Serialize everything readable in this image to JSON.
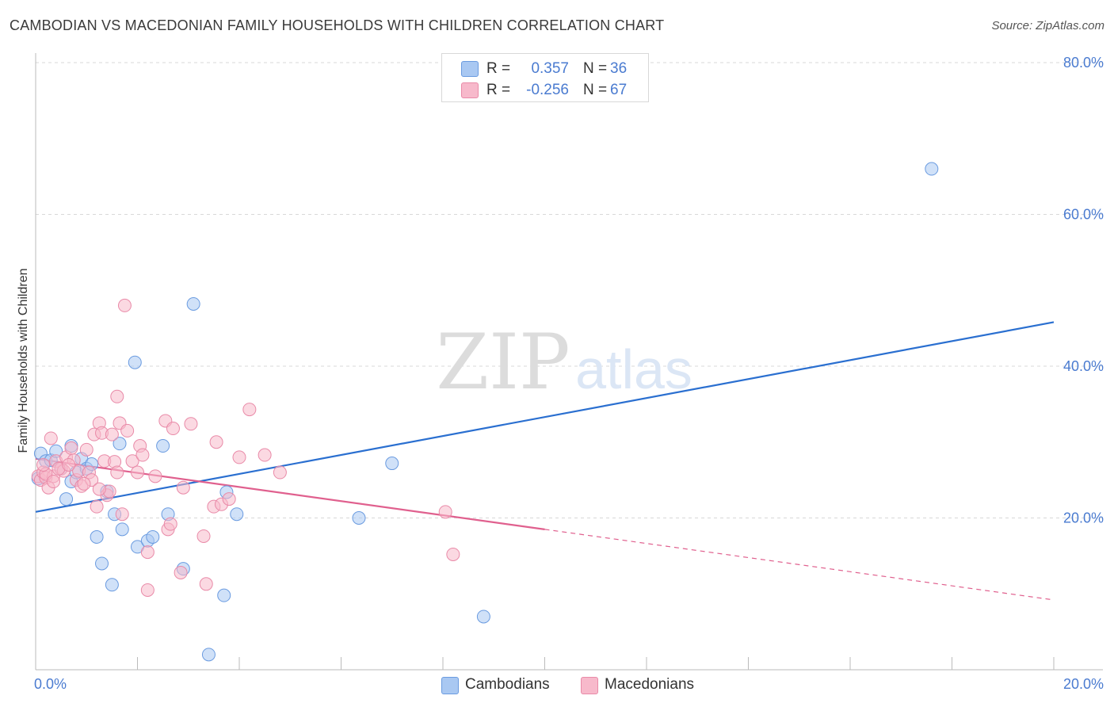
{
  "header": {
    "title": "CAMBODIAN VS MACEDONIAN FAMILY HOUSEHOLDS WITH CHILDREN CORRELATION CHART",
    "source": "Source: ZipAtlas.com"
  },
  "watermark": {
    "zip": "ZIP",
    "atlas": "atlas"
  },
  "legend": {
    "rows": [
      {
        "r_label": "R =",
        "r_value": "0.357",
        "n_label": "N =",
        "n_value": "36"
      },
      {
        "r_label": "R =",
        "r_value": "-0.256",
        "n_label": "N =",
        "n_value": "67"
      }
    ]
  },
  "bottom_legend": {
    "cambodians": "Cambodians",
    "macedonians": "Macedonians"
  },
  "colors": {
    "cambodian_fill": "#a9c8f2",
    "cambodian_stroke": "#6a9be0",
    "cambodian_line": "#2a6fd0",
    "macedonian_fill": "#f7b9cb",
    "macedonian_stroke": "#e98aa8",
    "macedonian_line": "#e0608e",
    "tick_blue": "#4a7bd0",
    "grid": "#d8d8d8"
  },
  "chart_data": {
    "type": "scatter",
    "title": "CAMBODIAN VS MACEDONIAN FAMILY HOUSEHOLDS WITH CHILDREN CORRELATION CHART",
    "xlabel": "",
    "ylabel": "Family Households with Children",
    "xlim": [
      0,
      20
    ],
    "ylim": [
      0,
      80
    ],
    "x_tick_labels": [
      "0.0%",
      "20.0%"
    ],
    "y_tick_values": [
      20,
      40,
      60,
      80
    ],
    "y_tick_labels": [
      "20.0%",
      "40.0%",
      "60.0%",
      "80.0%"
    ],
    "series": [
      {
        "name": "Cambodians",
        "points": [
          [
            0.05,
            25.2
          ],
          [
            0.1,
            28.5
          ],
          [
            0.2,
            27.5
          ],
          [
            0.3,
            27.6
          ],
          [
            0.4,
            28.8
          ],
          [
            0.5,
            26.5
          ],
          [
            0.6,
            22.5
          ],
          [
            0.7,
            29.5
          ],
          [
            0.7,
            24.8
          ],
          [
            0.8,
            26.0
          ],
          [
            0.9,
            27.8
          ],
          [
            1.0,
            26.5
          ],
          [
            1.1,
            27.1
          ],
          [
            1.2,
            17.5
          ],
          [
            1.3,
            14.0
          ],
          [
            1.4,
            23.5
          ],
          [
            1.5,
            11.2
          ],
          [
            1.55,
            20.5
          ],
          [
            1.65,
            29.8
          ],
          [
            1.7,
            18.5
          ],
          [
            1.95,
            40.5
          ],
          [
            2.0,
            16.2
          ],
          [
            2.2,
            17.0
          ],
          [
            2.3,
            17.5
          ],
          [
            2.5,
            29.5
          ],
          [
            2.6,
            20.5
          ],
          [
            2.9,
            13.3
          ],
          [
            3.1,
            48.2
          ],
          [
            3.4,
            2.0
          ],
          [
            3.7,
            9.8
          ],
          [
            3.75,
            23.4
          ],
          [
            3.95,
            20.5
          ],
          [
            6.35,
            20.0
          ],
          [
            7.0,
            27.2
          ],
          [
            8.8,
            7.0
          ],
          [
            17.6,
            66.0
          ]
        ],
        "trend": {
          "x": [
            0,
            20
          ],
          "y": [
            20.8,
            45.8
          ],
          "style": "solid"
        }
      },
      {
        "name": "Macedonians",
        "points": [
          [
            0.05,
            25.5
          ],
          [
            0.1,
            25.0
          ],
          [
            0.15,
            26.0
          ],
          [
            0.2,
            25.3
          ],
          [
            0.25,
            24.0
          ],
          [
            0.3,
            30.5
          ],
          [
            0.35,
            25.5
          ],
          [
            0.4,
            27.5
          ],
          [
            0.5,
            26.5
          ],
          [
            0.55,
            26.2
          ],
          [
            0.6,
            28.0
          ],
          [
            0.7,
            29.2
          ],
          [
            0.75,
            27.6
          ],
          [
            0.8,
            25.0
          ],
          [
            0.85,
            26.2
          ],
          [
            0.9,
            24.2
          ],
          [
            1.0,
            29.0
          ],
          [
            1.05,
            26.0
          ],
          [
            1.1,
            25.0
          ],
          [
            1.15,
            31.0
          ],
          [
            1.2,
            21.5
          ],
          [
            1.25,
            32.5
          ],
          [
            1.3,
            31.2
          ],
          [
            1.35,
            27.5
          ],
          [
            1.4,
            23.0
          ],
          [
            1.45,
            23.5
          ],
          [
            1.5,
            31.0
          ],
          [
            1.55,
            27.4
          ],
          [
            1.6,
            36.0
          ],
          [
            1.65,
            32.5
          ],
          [
            1.7,
            20.5
          ],
          [
            1.75,
            48.0
          ],
          [
            1.8,
            31.5
          ],
          [
            1.9,
            27.5
          ],
          [
            2.0,
            26.0
          ],
          [
            2.05,
            29.5
          ],
          [
            2.1,
            28.3
          ],
          [
            2.2,
            15.5
          ],
          [
            2.2,
            10.5
          ],
          [
            2.55,
            32.8
          ],
          [
            2.6,
            18.5
          ],
          [
            2.65,
            19.2
          ],
          [
            2.7,
            31.8
          ],
          [
            2.85,
            12.8
          ],
          [
            3.05,
            32.4
          ],
          [
            3.3,
            17.6
          ],
          [
            3.35,
            11.3
          ],
          [
            3.5,
            21.5
          ],
          [
            3.55,
            30.0
          ],
          [
            3.65,
            21.8
          ],
          [
            3.8,
            22.5
          ],
          [
            4.0,
            28.0
          ],
          [
            4.2,
            34.3
          ],
          [
            4.5,
            28.3
          ],
          [
            4.8,
            26.0
          ],
          [
            8.05,
            20.8
          ],
          [
            8.2,
            15.2
          ],
          [
            0.2,
            25.8
          ],
          [
            0.45,
            26.5
          ],
          [
            0.65,
            27.0
          ],
          [
            0.95,
            24.5
          ],
          [
            1.25,
            23.8
          ],
          [
            1.6,
            26.0
          ],
          [
            2.35,
            25.5
          ],
          [
            2.9,
            24.0
          ],
          [
            0.15,
            27.0
          ],
          [
            0.35,
            24.8
          ]
        ],
        "trend": {
          "x": [
            0,
            10
          ],
          "y": [
            27.8,
            18.5
          ],
          "style": "solid"
        },
        "trend_extension": {
          "x": [
            10,
            20
          ],
          "y": [
            18.5,
            9.2
          ],
          "style": "dashed"
        }
      }
    ]
  }
}
